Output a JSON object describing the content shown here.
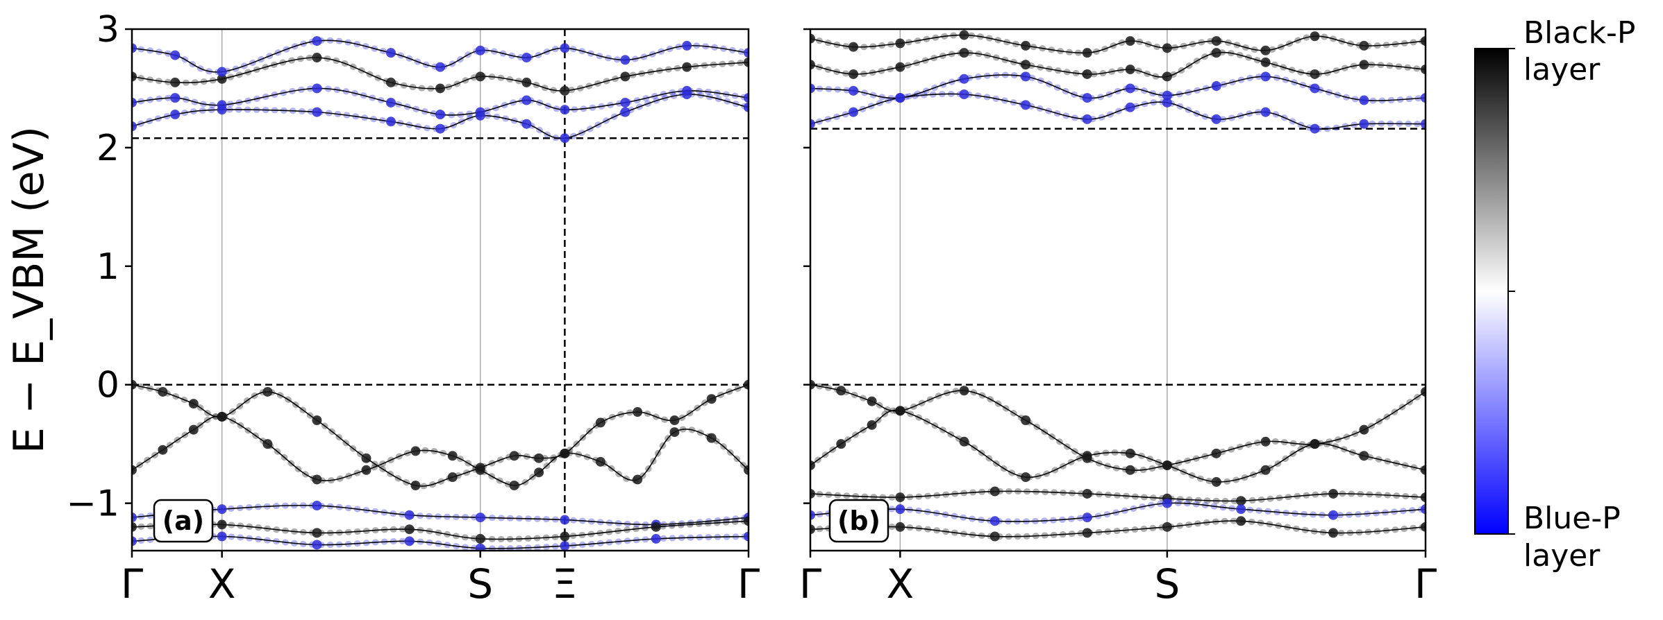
{
  "chart_data": [
    {
      "type": "line",
      "panel_label": "(a)",
      "ylabel": "E − E_VBM (eV)",
      "ylim": [
        -1.4,
        3
      ],
      "yticks": [
        -1,
        0,
        1,
        2,
        3
      ],
      "x": [
        0,
        0.146,
        0.565,
        0.702,
        1.0
      ],
      "high_symmetry_points": [
        "Γ",
        "X",
        "S",
        "Ξ",
        "Γ"
      ],
      "vbm": 0,
      "cbm": 2.08,
      "marked_k_index": 3,
      "series": [
        {
          "x": [
            0,
            0.05,
            0.1,
            0.146,
            0.22,
            0.3,
            0.38,
            0.46,
            0.52,
            0.565,
            0.62,
            0.66,
            0.702,
            0.76,
            0.82,
            0.88,
            0.94,
            1.0
          ],
          "values": [
            0.0,
            -0.06,
            -0.16,
            -0.27,
            -0.06,
            -0.3,
            -0.62,
            -0.85,
            -0.78,
            -0.7,
            -0.6,
            -0.62,
            -0.58,
            -0.32,
            -0.23,
            -0.3,
            -0.12,
            0.0
          ],
          "layer": "black"
        },
        {
          "x": [
            0,
            0.05,
            0.1,
            0.146,
            0.22,
            0.3,
            0.38,
            0.46,
            0.52,
            0.565,
            0.62,
            0.66,
            0.702,
            0.76,
            0.82,
            0.88,
            0.94,
            1.0
          ],
          "values": [
            -0.72,
            -0.55,
            -0.38,
            -0.27,
            -0.5,
            -0.8,
            -0.72,
            -0.56,
            -0.6,
            -0.72,
            -0.85,
            -0.74,
            -0.58,
            -0.65,
            -0.8,
            -0.4,
            -0.45,
            -0.72
          ],
          "layer": "black"
        },
        {
          "x": [
            0,
            0.146,
            0.3,
            0.45,
            0.565,
            0.702,
            0.85,
            1.0
          ],
          "values": [
            -1.12,
            -1.05,
            -1.02,
            -1.1,
            -1.12,
            -1.14,
            -1.18,
            -1.12
          ],
          "layer": "blue"
        },
        {
          "x": [
            0,
            0.146,
            0.3,
            0.45,
            0.565,
            0.702,
            0.85,
            1.0
          ],
          "values": [
            -1.2,
            -1.18,
            -1.25,
            -1.22,
            -1.3,
            -1.28,
            -1.2,
            -1.15
          ],
          "layer": "black"
        },
        {
          "x": [
            0,
            0.146,
            0.3,
            0.45,
            0.565,
            0.702,
            0.85,
            1.0
          ],
          "values": [
            -1.32,
            -1.28,
            -1.35,
            -1.32,
            -1.38,
            -1.36,
            -1.3,
            -1.28
          ],
          "layer": "blue"
        },
        {
          "x": [
            0,
            0.07,
            0.146,
            0.3,
            0.42,
            0.5,
            0.565,
            0.64,
            0.702,
            0.8,
            0.9,
            1.0
          ],
          "values": [
            2.18,
            2.28,
            2.32,
            2.3,
            2.22,
            2.16,
            2.27,
            2.2,
            2.08,
            2.3,
            2.45,
            2.34
          ],
          "layer": "blue"
        },
        {
          "x": [
            0,
            0.07,
            0.146,
            0.3,
            0.42,
            0.5,
            0.565,
            0.64,
            0.702,
            0.8,
            0.9,
            1.0
          ],
          "values": [
            2.38,
            2.42,
            2.36,
            2.5,
            2.38,
            2.28,
            2.3,
            2.4,
            2.32,
            2.38,
            2.48,
            2.42
          ],
          "layer": "blue"
        },
        {
          "x": [
            0,
            0.07,
            0.146,
            0.3,
            0.42,
            0.5,
            0.565,
            0.64,
            0.702,
            0.8,
            0.9,
            1.0
          ],
          "values": [
            2.6,
            2.55,
            2.58,
            2.76,
            2.55,
            2.5,
            2.6,
            2.55,
            2.48,
            2.6,
            2.68,
            2.72
          ],
          "layer": "black"
        },
        {
          "x": [
            0,
            0.07,
            0.146,
            0.3,
            0.42,
            0.5,
            0.565,
            0.64,
            0.702,
            0.8,
            0.9,
            1.0
          ],
          "values": [
            2.84,
            2.78,
            2.64,
            2.9,
            2.8,
            2.68,
            2.82,
            2.76,
            2.84,
            2.74,
            2.86,
            2.8
          ],
          "layer": "blue"
        }
      ]
    },
    {
      "type": "line",
      "panel_label": "(b)",
      "ylim": [
        -1.4,
        3
      ],
      "yticks": [
        -1,
        0,
        1,
        2,
        3
      ],
      "x": [
        0,
        0.146,
        0.58,
        1.0
      ],
      "high_symmetry_points": [
        "Γ",
        "X",
        "S",
        "Γ"
      ],
      "vbm": 0,
      "cbm": 2.16,
      "series": [
        {
          "x": [
            0,
            0.05,
            0.1,
            0.146,
            0.25,
            0.35,
            0.45,
            0.52,
            0.58,
            0.66,
            0.74,
            0.82,
            0.9,
            1.0
          ],
          "values": [
            0.0,
            -0.05,
            -0.14,
            -0.22,
            -0.05,
            -0.3,
            -0.62,
            -0.72,
            -0.68,
            -0.58,
            -0.48,
            -0.5,
            -0.38,
            -0.06
          ],
          "layer": "black"
        },
        {
          "x": [
            0,
            0.05,
            0.1,
            0.146,
            0.25,
            0.35,
            0.45,
            0.52,
            0.58,
            0.66,
            0.74,
            0.82,
            0.9,
            1.0
          ],
          "values": [
            -0.68,
            -0.5,
            -0.34,
            -0.22,
            -0.48,
            -0.78,
            -0.6,
            -0.58,
            -0.68,
            -0.82,
            -0.72,
            -0.5,
            -0.6,
            -0.72
          ],
          "layer": "black"
        },
        {
          "x": [
            0,
            0.146,
            0.3,
            0.45,
            0.58,
            0.7,
            0.85,
            1.0
          ],
          "values": [
            -0.92,
            -0.95,
            -0.9,
            -0.92,
            -0.96,
            -0.98,
            -0.92,
            -0.95
          ],
          "layer": "black"
        },
        {
          "x": [
            0,
            0.146,
            0.3,
            0.45,
            0.58,
            0.7,
            0.85,
            1.0
          ],
          "values": [
            -1.1,
            -1.05,
            -1.15,
            -1.12,
            -1.0,
            -1.05,
            -1.1,
            -1.05
          ],
          "layer": "blue"
        },
        {
          "x": [
            0,
            0.146,
            0.3,
            0.45,
            0.58,
            0.7,
            0.85,
            1.0
          ],
          "values": [
            -1.22,
            -1.2,
            -1.28,
            -1.25,
            -1.2,
            -1.15,
            -1.25,
            -1.2
          ],
          "layer": "black"
        },
        {
          "x": [
            0,
            0.07,
            0.146,
            0.25,
            0.35,
            0.45,
            0.52,
            0.58,
            0.66,
            0.74,
            0.82,
            0.9,
            1.0
          ],
          "values": [
            2.2,
            2.3,
            2.42,
            2.45,
            2.36,
            2.24,
            2.34,
            2.38,
            2.24,
            2.3,
            2.16,
            2.2,
            2.2
          ],
          "layer": "blue"
        },
        {
          "x": [
            0,
            0.07,
            0.146,
            0.25,
            0.35,
            0.45,
            0.52,
            0.58,
            0.66,
            0.74,
            0.82,
            0.9,
            1.0
          ],
          "values": [
            2.5,
            2.48,
            2.42,
            2.58,
            2.6,
            2.42,
            2.5,
            2.44,
            2.52,
            2.6,
            2.5,
            2.4,
            2.42
          ],
          "layer": "blue"
        },
        {
          "x": [
            0,
            0.07,
            0.146,
            0.25,
            0.35,
            0.45,
            0.52,
            0.58,
            0.66,
            0.74,
            0.82,
            0.9,
            1.0
          ],
          "values": [
            2.7,
            2.62,
            2.68,
            2.8,
            2.7,
            2.62,
            2.66,
            2.6,
            2.8,
            2.72,
            2.62,
            2.7,
            2.66
          ],
          "layer": "black"
        },
        {
          "x": [
            0,
            0.07,
            0.146,
            0.25,
            0.35,
            0.45,
            0.52,
            0.58,
            0.66,
            0.74,
            0.82,
            0.9,
            1.0
          ],
          "values": [
            2.92,
            2.85,
            2.88,
            2.95,
            2.86,
            2.8,
            2.9,
            2.84,
            2.9,
            2.82,
            2.94,
            2.86,
            2.9
          ],
          "layer": "black"
        }
      ]
    }
  ],
  "colorbar": {
    "top_label_line1": "Black-P",
    "top_label_line2": "layer",
    "bottom_label_line1": "Blue-P",
    "bottom_label_line2": "layer",
    "top_color": "#000000",
    "mid_color": "#ffffff",
    "bottom_color": "#0000ff"
  },
  "colors": {
    "black_layer": "#1a1a1a",
    "blue_layer": "#2b2bd9",
    "fermi_line": "#000000"
  }
}
